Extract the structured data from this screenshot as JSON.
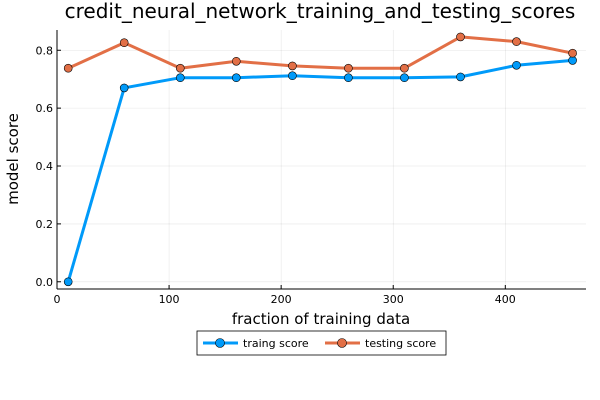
{
  "chart_data": {
    "type": "line",
    "title": "credit_neural_network_training_and_testing_scores",
    "xlabel": "fraction of training data",
    "ylabel": "model score",
    "xlim": [
      0,
      472
    ],
    "ylim": [
      -0.025,
      0.87
    ],
    "xticks": [
      0,
      100,
      200,
      300,
      400
    ],
    "yticks": [
      0.0,
      0.2,
      0.4,
      0.6,
      0.8
    ],
    "xtick_labels": [
      "0",
      "100",
      "200",
      "300",
      "400"
    ],
    "ytick_labels": [
      "0.0",
      "0.2",
      "0.4",
      "0.6",
      "0.8"
    ],
    "grid": true,
    "legend_position": "bottom-center outside",
    "x": [
      10,
      60,
      110,
      160,
      210,
      260,
      310,
      360,
      410,
      460
    ],
    "series": [
      {
        "name": "traing score",
        "color": "#009af9",
        "values": [
          0.0,
          0.67,
          0.705,
          0.705,
          0.712,
          0.705,
          0.705,
          0.708,
          0.748,
          0.765
        ]
      },
      {
        "name": "testing score",
        "color": "#e26f46",
        "values": [
          0.738,
          0.826,
          0.738,
          0.762,
          0.746,
          0.738,
          0.738,
          0.846,
          0.83,
          0.79
        ]
      }
    ]
  }
}
